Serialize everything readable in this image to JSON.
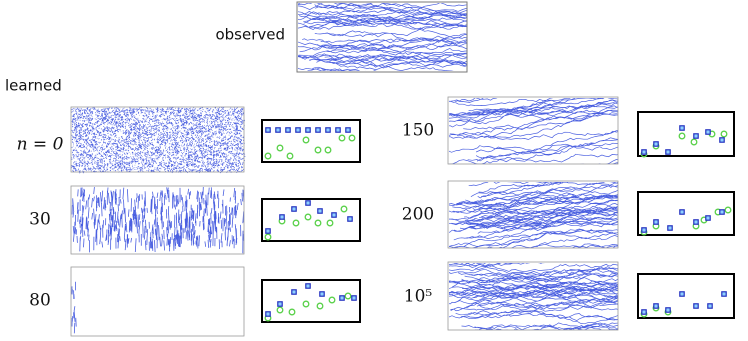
{
  "observed_label": "observed",
  "learned_label": "learned",
  "panels": [
    {
      "label": "n = 0"
    },
    {
      "label": "30"
    },
    {
      "label": "80"
    },
    {
      "label": "150"
    },
    {
      "label": "200"
    },
    {
      "label": "10⁵"
    }
  ]
}
